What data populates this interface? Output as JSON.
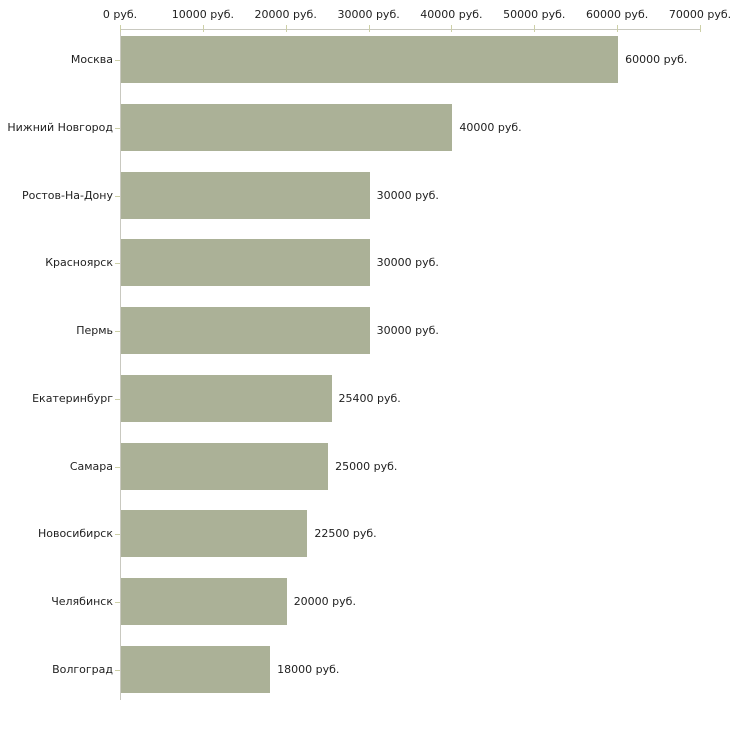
{
  "chart_data": {
    "type": "bar",
    "orientation": "horizontal",
    "categories": [
      "Москва",
      "Нижний Новгород",
      "Ростов-На-Дону",
      "Красноярск",
      "Пермь",
      "Екатеринбург",
      "Самара",
      "Новосибирск",
      "Челябинск",
      "Волгоград"
    ],
    "values": [
      60000,
      40000,
      30000,
      30000,
      30000,
      25400,
      25000,
      22500,
      20000,
      18000
    ],
    "value_labels": [
      "60000 руб.",
      "40000 руб.",
      "30000 руб.",
      "30000 руб.",
      "30000 руб.",
      "25400 руб.",
      "25000 руб.",
      "22500 руб.",
      "20000 руб.",
      "18000 руб."
    ],
    "x_axis": {
      "min": 0,
      "max": 70000,
      "ticks": [
        0,
        10000,
        20000,
        30000,
        40000,
        50000,
        60000,
        70000
      ],
      "tick_labels": [
        "0 руб.",
        "10000 руб.",
        "20000 руб.",
        "30000 руб.",
        "40000 руб.",
        "50000 руб.",
        "60000 руб.",
        "70000 руб."
      ],
      "position": "top"
    },
    "grid": false,
    "legend": "none",
    "colors": {
      "bar": "#abb197",
      "axis_line": "#c9c9c0",
      "tick": "#cdd0a7",
      "text": "#1f1f1f",
      "background": "#ffffff"
    }
  }
}
